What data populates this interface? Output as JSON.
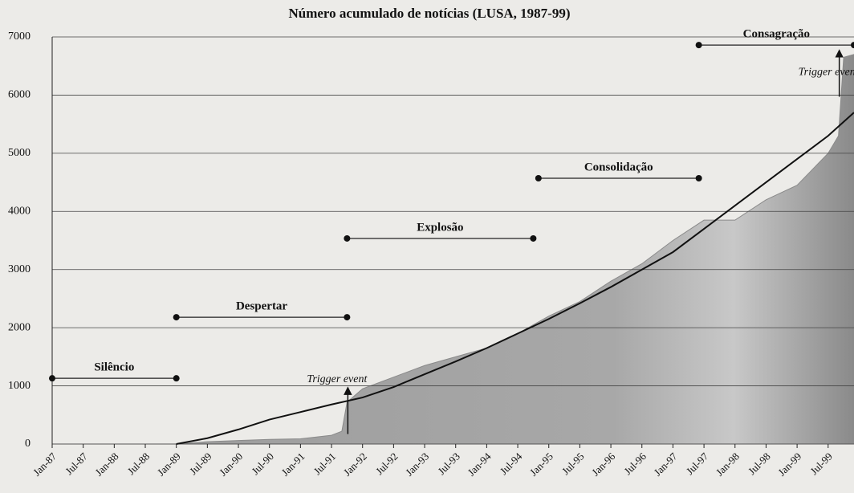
{
  "chart_data": {
    "type": "area",
    "title": "Número acumulado de notícias (LUSA, 1987-99)",
    "xlim": [
      "Jan-87",
      "Dec-99"
    ],
    "xticks": [
      "Jan-87",
      "Jul-87",
      "Jan-88",
      "Jul-88",
      "Jan-89",
      "Jul-89",
      "Jan-90",
      "Jul-90",
      "Jan-91",
      "Jul-91",
      "Jan-92",
      "Jul-92",
      "Jan-93",
      "Jul-93",
      "Jan-94",
      "Jul-94",
      "Jan-95",
      "Jul-95",
      "Jan-96",
      "Jul-96",
      "Jan-97",
      "Jul-97",
      "Jan-98",
      "Jul-98",
      "Jan-99",
      "Jul-99"
    ],
    "ylim": [
      0,
      7000
    ],
    "yticks": [
      0,
      1000,
      2000,
      3000,
      4000,
      5000,
      6000,
      7000
    ],
    "grid": true,
    "series": [
      {
        "color": "#8a8a8a",
        "x": [
          "Jan-87",
          "Jan-89",
          "Jul-89",
          "Jan-90",
          "Jul-90",
          "Jan-91",
          "Jul-91",
          "Sep-91",
          "Oct-91",
          "Jan-92",
          "Jul-92",
          "Jan-93",
          "Jul-93",
          "Jan-94",
          "Jul-94",
          "Jan-95",
          "Jul-95",
          "Jan-96",
          "Jul-96",
          "Jan-97",
          "Jul-97",
          "Jan-98",
          "Jul-98",
          "Jan-99",
          "Jul-99",
          "Sep-99",
          "Oct-99",
          "Dec-99"
        ],
        "values": [
          0,
          0,
          40,
          60,
          80,
          90,
          150,
          220,
          720,
          950,
          1150,
          1350,
          1500,
          1650,
          1900,
          2200,
          2450,
          2800,
          3100,
          3500,
          3850,
          3850,
          4200,
          4450,
          5000,
          5300,
          6650,
          6700
        ]
      },
      {
        "color": "#111111",
        "x": [
          "Jan-89",
          "Jul-89",
          "Jan-90",
          "Jul-90",
          "Jan-91",
          "Jul-91",
          "Jan-92",
          "Jul-92",
          "Jan-93",
          "Jul-93",
          "Jan-94",
          "Jul-94",
          "Jan-95",
          "Jul-95",
          "Jan-96",
          "Jul-96",
          "Jan-97",
          "Jul-97",
          "Jan-98",
          "Jul-98",
          "Jan-99",
          "Jul-99",
          "Dec-99"
        ],
        "values": [
          0,
          100,
          250,
          420,
          550,
          680,
          800,
          980,
          1200,
          1420,
          1650,
          1900,
          2150,
          2420,
          2700,
          3000,
          3300,
          3700,
          4100,
          4500,
          4900,
          5300,
          5700
        ]
      }
    ],
    "phases": [
      {
        "label": "Silêncio",
        "from": "Jan-87",
        "to": "Jan-89",
        "y": 1130
      },
      {
        "label": "Despertar",
        "from": "Jan-89",
        "to": "Oct-91",
        "y": 2180
      },
      {
        "label": "Explosão",
        "from": "Oct-91",
        "to": "Oct-94",
        "y": 3535
      },
      {
        "label": "Consolidação",
        "from": "Nov-94",
        "to": "Jun-97",
        "y": 4570
      },
      {
        "label": "Consagração",
        "from": "Jun-97",
        "to": "Dec-99",
        "y": 6860
      }
    ],
    "trigger_events": [
      {
        "label": "Trigger event",
        "x": "Oct-91",
        "y": 1000
      },
      {
        "label": "Trigger event",
        "x": "Sep-99",
        "y": 6800
      }
    ]
  }
}
